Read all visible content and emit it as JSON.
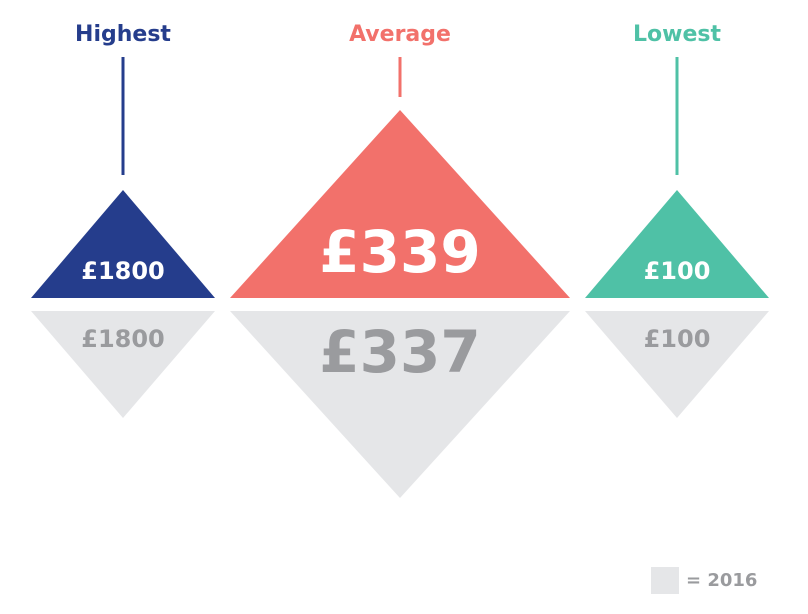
{
  "items": [
    {
      "label": "Highest",
      "current": "£1800",
      "previous": "£1800"
    },
    {
      "label": "Average",
      "current": "£339",
      "previous": "£337"
    },
    {
      "label": "Lowest",
      "current": "£100",
      "previous": "£100"
    }
  ],
  "legend": {
    "label": "= 2016"
  }
}
